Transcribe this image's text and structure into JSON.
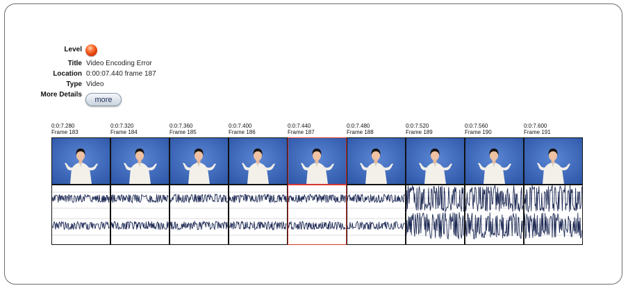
{
  "error": {
    "level_label": "Level",
    "title_label": "Title",
    "title_value": "Video Encoding Error",
    "location_label": "Location",
    "location_value": "0:00:07.440 frame 187",
    "type_label": "Type",
    "type_value": "Video",
    "more_details_label": "More Details",
    "more_button_label": "more",
    "level_color": "#e2400e"
  },
  "frames": [
    {
      "time": "0:0:7.280",
      "frame": "Frame 183",
      "selected": false,
      "noise": "low"
    },
    {
      "time": "0:0:7.320",
      "frame": "Frame 184",
      "selected": false,
      "noise": "low"
    },
    {
      "time": "0:0:7.360",
      "frame": "Frame 185",
      "selected": false,
      "noise": "low"
    },
    {
      "time": "0:0:7.400",
      "frame": "Frame 186",
      "selected": false,
      "noise": "low"
    },
    {
      "time": "0:0:7.440",
      "frame": "Frame 187",
      "selected": true,
      "noise": "low"
    },
    {
      "time": "0:0:7.480",
      "frame": "Frame 188",
      "selected": false,
      "noise": "low"
    },
    {
      "time": "0:0:7.520",
      "frame": "Frame 189",
      "selected": false,
      "noise": "high"
    },
    {
      "time": "0:0:7.560",
      "frame": "Frame 190",
      "selected": false,
      "noise": "high"
    },
    {
      "time": "0:0:7.600",
      "frame": "Frame 191",
      "selected": false,
      "noise": "high"
    }
  ],
  "colors": {
    "thumb_background": "#3f6cc0",
    "waveform": "#1e2a55",
    "selection_border": "#d9362f"
  }
}
